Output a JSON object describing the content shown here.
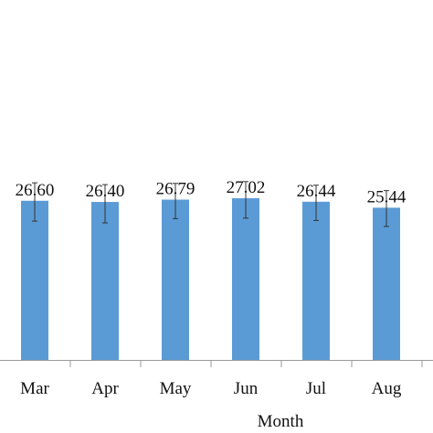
{
  "chart_data": {
    "type": "bar",
    "categories": [
      "Mar",
      "Apr",
      "May",
      "Jun",
      "Jul",
      "Aug"
    ],
    "values": [
      26.6,
      26.4,
      26.79,
      27.02,
      26.44,
      25.44
    ],
    "value_labels": [
      "26.60",
      "26.40",
      "26.79",
      "27.02",
      "26.44",
      "25.44"
    ],
    "error_bars": {
      "upper": [
        29.6,
        29.3,
        29.5,
        29.8,
        29.2,
        28.3
      ],
      "lower": [
        23.2,
        22.9,
        23.6,
        23.7,
        23.3,
        22.3
      ]
    },
    "xlabel": "Month",
    "ylabel": "",
    "title": "",
    "ylim": [
      0,
      35
    ],
    "grid": false,
    "colors": {
      "bar": "#5b9bd5",
      "axis": "#999999",
      "error_bar": "#333333"
    }
  }
}
